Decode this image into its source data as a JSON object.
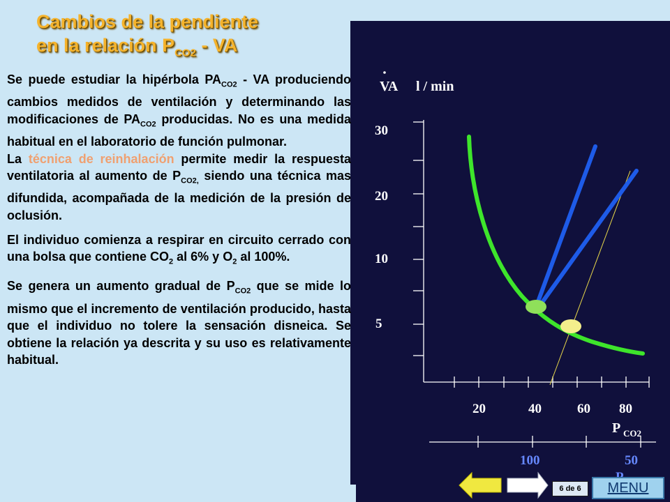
{
  "title": {
    "line1": "Cambios de la pendiente",
    "line2_prefix": "en la relación P",
    "line2_sub": "CO2",
    "line2_suffix": " - VA"
  },
  "paragraphs": {
    "p1_a": "Se puede estudiar la hipérbola PA",
    "p1_sub1": "CO2",
    "p1_b": " - VA produciendo cambios medidos de ventilación y determinando las modificaciones de PA",
    "p1_sub2": "CO2",
    "p1_c": " producidas. No es una medida habitual en el laboratorio de función pulmonar.",
    "p2_a": "La ",
    "p2_highlight": "técnica de reinhalación",
    "p2_b": " permite medir la respuesta ventilatoria al aumento de P",
    "p2_sub": "CO2,",
    "p2_c": " siendo una técnica mas difundida, acompañada de la medición de la presión de oclusión.",
    "p3_a": "El individuo comienza a respirar en circuito cerrado con una bolsa que contiene CO",
    "p3_sub1": "2",
    "p3_b": " al 6% y O",
    "p3_sub2": "2",
    "p3_c": " al 100%.",
    "p4_a": "Se genera un aumento gradual de P",
    "p4_sub": "CO2",
    "p4_b": " que se mide lo mismo que el incremento de ventilación producido, hasta que el individuo no tolere la sensación disneica. Se obtiene la relación ya descrita y su uso es relativamente habitual."
  },
  "chart": {
    "y_label": "VA",
    "y_unit": "l / min",
    "y_ticks": [
      "30",
      "20",
      "10",
      "5"
    ],
    "x_ticks": [
      "20",
      "40",
      "60",
      "80"
    ],
    "x_label": "P",
    "x_label_sub": "CO2",
    "x2_ticks": [
      "100",
      "50"
    ],
    "x2_label": "P",
    "colors": {
      "panel": "#10103c",
      "axis_text": "#ffffff",
      "axis2_text": "#6688ff",
      "curve": "#3ee52b",
      "slope_lines": "#1e5be8",
      "thin_line": "#e8d84a",
      "marker_green": "#8fe05a",
      "marker_yellow": "#f4ef8c"
    }
  },
  "chart_data": {
    "type": "line",
    "title": "",
    "xlabel": "PCO2",
    "ylabel": "VA l / min",
    "x_ticks": [
      20,
      40,
      60,
      80
    ],
    "y_ticks": [
      5,
      10,
      20,
      30
    ],
    "series": []
  },
  "nav": {
    "page_indicator": "6 de 6",
    "menu_label": "MENU",
    "prev_icon": "left-arrow-icon",
    "next_icon": "right-arrow-icon"
  }
}
